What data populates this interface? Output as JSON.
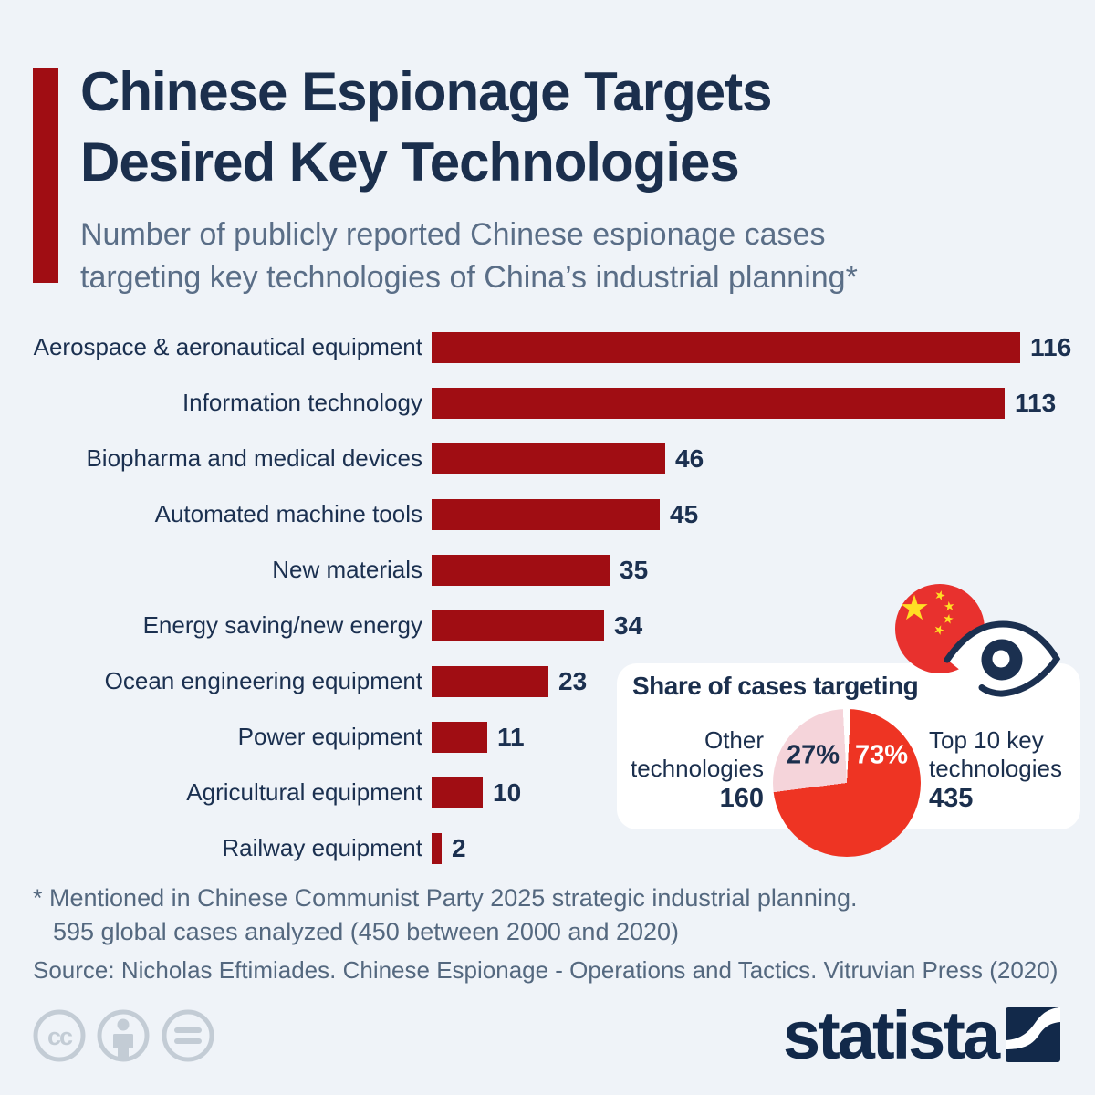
{
  "colors": {
    "background": "#eff3f8",
    "navy_text": "#1b2f4d",
    "slate_text": "#5a6e87",
    "bar_red": "#a00d13",
    "accent_red": "#a00d13",
    "pie_red": "#ee3423",
    "pie_pink": "#f5d4da",
    "card_white": "#ffffff",
    "license_gray": "#c3ccd5",
    "logo_navy": "#12294a",
    "flag_red": "#e8312e",
    "flag_yellow": "#ffde24"
  },
  "header": {
    "title_line1": "Chinese Espionage Targets",
    "title_line2": "Desired Key Technologies",
    "subtitle_line1": "Number of publicly reported Chinese espionage cases",
    "subtitle_line2": "targeting key technologies of China’s industrial planning*"
  },
  "chart_data": [
    {
      "type": "bar",
      "orientation": "horizontal",
      "title": "Number of publicly reported Chinese espionage cases targeting key technologies of China’s industrial planning",
      "categories": [
        "Aerospace & aeronautical equipment",
        "Information technology",
        "Biopharma and medical devices",
        "Automated machine tools",
        "New materials",
        "Energy saving/new energy",
        "Ocean engineering equipment",
        "Power equipment",
        "Agricultural equipment",
        "Railway equipment"
      ],
      "values": [
        116,
        113,
        46,
        45,
        35,
        34,
        23,
        11,
        10,
        2
      ],
      "value_labels": [
        "116",
        "113",
        "46",
        "45",
        "35",
        "34",
        "23",
        "11",
        "10",
        "2"
      ],
      "bar_color": "#a00d13",
      "xlim": [
        0,
        120
      ],
      "grid": false,
      "value_labels_position": "end"
    },
    {
      "type": "pie",
      "title": "Share of cases targeting",
      "start_angle_deg": 0,
      "direction": "clockwise",
      "slices": [
        {
          "label": "Top 10 key technologies",
          "label_line1": "Top 10 key",
          "label_line2": "technologies",
          "value": 435,
          "value_label": "435",
          "pct": 73,
          "pct_label": "73%",
          "color": "#ee3423"
        },
        {
          "label": "Other technologies",
          "label_line1": "Other",
          "label_line2": "technologies",
          "value": 160,
          "value_label": "160",
          "pct": 27,
          "pct_label": "27%",
          "color": "#f5d4da"
        }
      ]
    }
  ],
  "footnote": {
    "line1": "* Mentioned in Chinese Communist Party 2025 strategic industrial planning.",
    "line2": "595 global cases analyzed (450 between 2000 and 2020)",
    "source": "Source: Nicholas Eftimiades. Chinese Espionage - Operations and Tactics. Vitruvian Press (2020)"
  },
  "branding": {
    "logo_text": "statista"
  },
  "decorations": {
    "flag_icon": "china-flag-icon",
    "eye_icon": "eye-icon",
    "license_icons": [
      "cc-circle-icon",
      "person-circle-icon",
      "equals-circle-icon"
    ]
  }
}
